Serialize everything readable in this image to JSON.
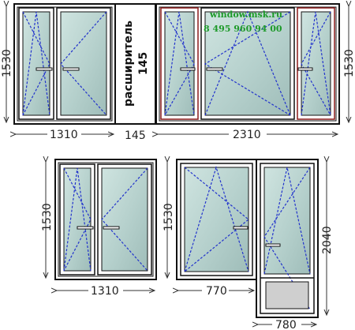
{
  "brand": {
    "site": "window.msk.ru",
    "phone": "8 495 960 94 00"
  },
  "top_left": {
    "height_dim": "1530",
    "width_dim": "1310"
  },
  "expander": {
    "label": "расширитель",
    "value": "145",
    "width_dim": "145"
  },
  "top_right": {
    "height_dim": "1530",
    "width_dim": "2310"
  },
  "bottom_left": {
    "height_dim": "1530",
    "width_dim": "1310"
  },
  "balcony_block": {
    "window_height_dim": "1530",
    "window_width_dim": "770",
    "door_height_dim": "2040",
    "door_width_dim": "780"
  },
  "colors": {
    "frame": "#111111",
    "glass": "#bfd7d3",
    "opening_lines": "#2233cc",
    "brand_text": "#1e9a2a",
    "tilt_frame_red": "#8b1a1a"
  }
}
